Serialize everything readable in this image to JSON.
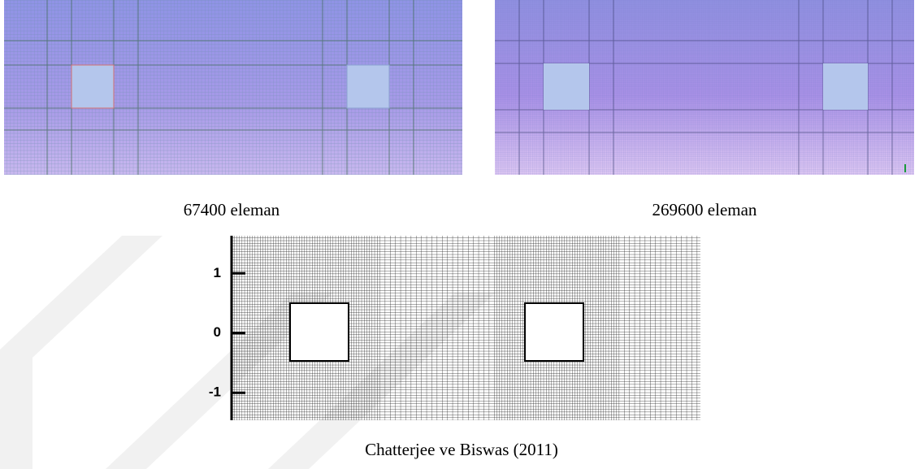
{
  "figures": [
    {
      "caption": "67400 eleman"
    },
    {
      "caption": "269600 eleman"
    },
    {
      "caption": "Chatterjee ve Biswas (2011)",
      "ylim": [
        -1.46,
        1.63
      ],
      "yticks": [
        1,
        0,
        -1
      ]
    }
  ]
}
